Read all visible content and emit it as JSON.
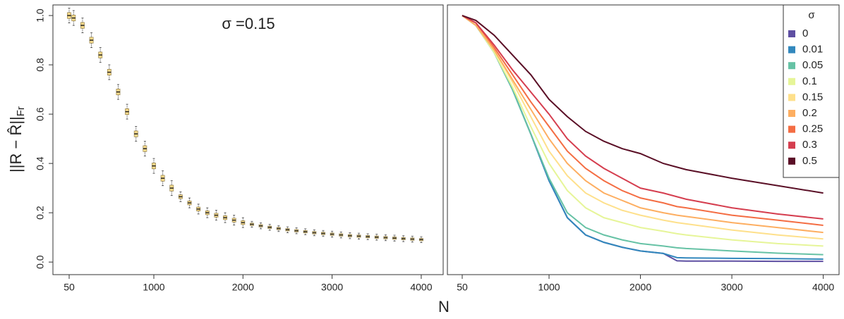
{
  "chart_data": [
    {
      "type": "box",
      "annotation": "σ =0.15",
      "ylabel": {
        "main": "||R − R̂||",
        "sub": "Fr"
      },
      "xlabel": "N",
      "color": "#f5d98b",
      "xlim": [
        -132,
        4246
      ],
      "ylim": [
        -0.051,
        1.043
      ],
      "xticks": [
        50,
        1000,
        2000,
        3000,
        4000
      ],
      "yticks": [
        {
          "value": 0,
          "label": "0.0"
        },
        0.2,
        0.4,
        0.6,
        0.8,
        {
          "value": 1,
          "label": "1.0"
        }
      ],
      "x": [
        50,
        100,
        200,
        300,
        400,
        500,
        600,
        700,
        800,
        900,
        1000,
        1100,
        1200,
        1300,
        1400,
        1500,
        1600,
        1700,
        1800,
        1900,
        2000,
        2100,
        2200,
        2300,
        2400,
        2500,
        2600,
        2700,
        2800,
        2900,
        3000,
        3100,
        3200,
        3300,
        3400,
        3500,
        3600,
        3700,
        3800,
        3900,
        4000
      ],
      "median": [
        1.0,
        0.99,
        0.96,
        0.9,
        0.84,
        0.77,
        0.69,
        0.61,
        0.52,
        0.46,
        0.39,
        0.34,
        0.3,
        0.265,
        0.24,
        0.215,
        0.2,
        0.19,
        0.18,
        0.17,
        0.16,
        0.153,
        0.147,
        0.141,
        0.136,
        0.131,
        0.127,
        0.123,
        0.119,
        0.116,
        0.113,
        0.11,
        0.107,
        0.105,
        0.103,
        0.101,
        0.099,
        0.097,
        0.095,
        0.093,
        0.091
      ],
      "q1": [
        0.988,
        0.978,
        0.948,
        0.888,
        0.828,
        0.758,
        0.678,
        0.598,
        0.508,
        0.448,
        0.378,
        0.328,
        0.288,
        0.257,
        0.232,
        0.207,
        0.192,
        0.182,
        0.172,
        0.162,
        0.152,
        0.148,
        0.142,
        0.136,
        0.131,
        0.126,
        0.122,
        0.118,
        0.114,
        0.111,
        0.108,
        0.105,
        0.102,
        0.1,
        0.098,
        0.096,
        0.094,
        0.092,
        0.09,
        0.088,
        0.086
      ],
      "q3": [
        1.012,
        1.002,
        0.972,
        0.912,
        0.852,
        0.782,
        0.702,
        0.622,
        0.532,
        0.472,
        0.402,
        0.352,
        0.312,
        0.273,
        0.248,
        0.223,
        0.208,
        0.198,
        0.188,
        0.178,
        0.168,
        0.158,
        0.152,
        0.146,
        0.141,
        0.136,
        0.132,
        0.128,
        0.124,
        0.121,
        0.118,
        0.115,
        0.112,
        0.11,
        0.108,
        0.106,
        0.104,
        0.102,
        0.1,
        0.098,
        0.096
      ],
      "whislo": [
        0.97,
        0.96,
        0.93,
        0.87,
        0.81,
        0.74,
        0.66,
        0.58,
        0.49,
        0.43,
        0.36,
        0.31,
        0.27,
        0.245,
        0.22,
        0.195,
        0.18,
        0.17,
        0.16,
        0.15,
        0.14,
        0.141,
        0.135,
        0.129,
        0.124,
        0.119,
        0.115,
        0.111,
        0.107,
        0.104,
        0.101,
        0.098,
        0.095,
        0.093,
        0.091,
        0.089,
        0.087,
        0.085,
        0.083,
        0.081,
        0.079
      ],
      "whishi": [
        1.03,
        1.02,
        0.99,
        0.93,
        0.87,
        0.8,
        0.72,
        0.64,
        0.55,
        0.49,
        0.42,
        0.37,
        0.33,
        0.285,
        0.26,
        0.235,
        0.22,
        0.21,
        0.2,
        0.19,
        0.18,
        0.165,
        0.159,
        0.153,
        0.148,
        0.143,
        0.139,
        0.135,
        0.131,
        0.128,
        0.125,
        0.122,
        0.119,
        0.117,
        0.115,
        0.113,
        0.111,
        0.109,
        0.107,
        0.105,
        0.103
      ]
    },
    {
      "type": "line",
      "legend_title": "σ",
      "legend": "top-right",
      "xlim": [
        -112,
        4173
      ],
      "ylim": [
        -0.051,
        1.043
      ],
      "xticks": [
        50,
        1000,
        2000,
        3000,
        4000
      ],
      "x": [
        50,
        200,
        400,
        600,
        800,
        1000,
        1200,
        1400,
        1600,
        1800,
        2000,
        2250,
        2400,
        2500,
        3000,
        3500,
        4000
      ],
      "series": [
        {
          "name": "0",
          "color": "#5e4fa2",
          "values": [
            1.0,
            0.96,
            0.85,
            0.7,
            0.52,
            0.33,
            0.18,
            0.11,
            0.08,
            0.06,
            0.045,
            0.035,
            0.005,
            0.004,
            0.004,
            0.003,
            0.003
          ]
        },
        {
          "name": "0.01",
          "color": "#3288bd",
          "values": [
            1.0,
            0.96,
            0.85,
            0.7,
            0.52,
            0.33,
            0.18,
            0.11,
            0.08,
            0.06,
            0.045,
            0.035,
            0.018,
            0.017,
            0.015,
            0.014,
            0.012
          ]
        },
        {
          "name": "0.05",
          "color": "#66c2a5",
          "values": [
            1.0,
            0.96,
            0.85,
            0.7,
            0.52,
            0.34,
            0.2,
            0.14,
            0.11,
            0.09,
            0.075,
            0.065,
            0.058,
            0.055,
            0.045,
            0.036,
            0.03
          ]
        },
        {
          "name": "0.1",
          "color": "#e6f598",
          "values": [
            1.0,
            0.96,
            0.85,
            0.71,
            0.55,
            0.4,
            0.29,
            0.22,
            0.18,
            0.16,
            0.14,
            0.125,
            0.115,
            0.11,
            0.09,
            0.075,
            0.065
          ]
        },
        {
          "name": "0.15",
          "color": "#fee08b",
          "values": [
            1.0,
            0.96,
            0.86,
            0.73,
            0.59,
            0.45,
            0.35,
            0.28,
            0.24,
            0.21,
            0.19,
            0.17,
            0.16,
            0.155,
            0.13,
            0.11,
            0.094
          ]
        },
        {
          "name": "0.2",
          "color": "#fdae61",
          "values": [
            1.0,
            0.96,
            0.86,
            0.74,
            0.62,
            0.5,
            0.4,
            0.33,
            0.28,
            0.25,
            0.22,
            0.2,
            0.19,
            0.185,
            0.16,
            0.14,
            0.12
          ]
        },
        {
          "name": "0.25",
          "color": "#f46d43",
          "values": [
            1.0,
            0.97,
            0.87,
            0.76,
            0.65,
            0.55,
            0.45,
            0.38,
            0.33,
            0.29,
            0.26,
            0.24,
            0.225,
            0.22,
            0.19,
            0.17,
            0.149
          ]
        },
        {
          "name": "0.3",
          "color": "#d53e4f",
          "values": [
            1.0,
            0.97,
            0.88,
            0.78,
            0.69,
            0.6,
            0.5,
            0.43,
            0.38,
            0.34,
            0.3,
            0.28,
            0.265,
            0.255,
            0.22,
            0.195,
            0.175
          ]
        },
        {
          "name": "0.5",
          "color": "#5a0f26",
          "values": [
            1.0,
            0.98,
            0.92,
            0.84,
            0.76,
            0.66,
            0.59,
            0.53,
            0.49,
            0.46,
            0.44,
            0.4,
            0.385,
            0.375,
            0.34,
            0.31,
            0.28
          ]
        }
      ]
    }
  ]
}
